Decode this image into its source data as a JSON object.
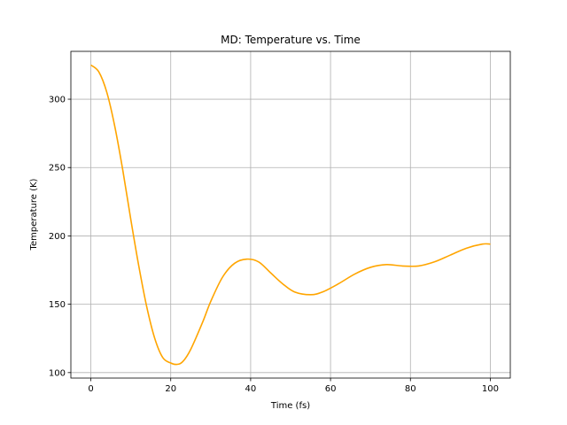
{
  "chart_data": {
    "type": "line",
    "title": "MD: Temperature vs. Time",
    "xlabel": "Time (fs)",
    "ylabel": "Temperature (K)",
    "xlim": [
      -5,
      105
    ],
    "ylim": [
      96,
      335
    ],
    "xticks": [
      0,
      20,
      40,
      60,
      80,
      100
    ],
    "yticks": [
      100,
      150,
      200,
      250,
      300
    ],
    "grid": true,
    "line_color": "#ffa500",
    "series": [
      {
        "x": [
          0,
          2,
          4,
          6,
          8,
          10,
          12,
          14,
          16,
          18,
          20,
          21.5,
          23,
          25,
          28,
          30,
          33,
          36,
          39,
          42,
          45,
          48,
          51,
          55,
          58,
          62,
          66,
          70,
          74,
          78,
          82,
          86,
          90,
          94,
          98,
          100
        ],
        "y": [
          325,
          320,
          305,
          280,
          248,
          212,
          178,
          148,
          125,
          111,
          107,
          106,
          108,
          117,
          137,
          152,
          170,
          180,
          183,
          181,
          173,
          165,
          159,
          157,
          159,
          165,
          172,
          177,
          179,
          178,
          178,
          181,
          186,
          191,
          194,
          194
        ]
      }
    ]
  }
}
